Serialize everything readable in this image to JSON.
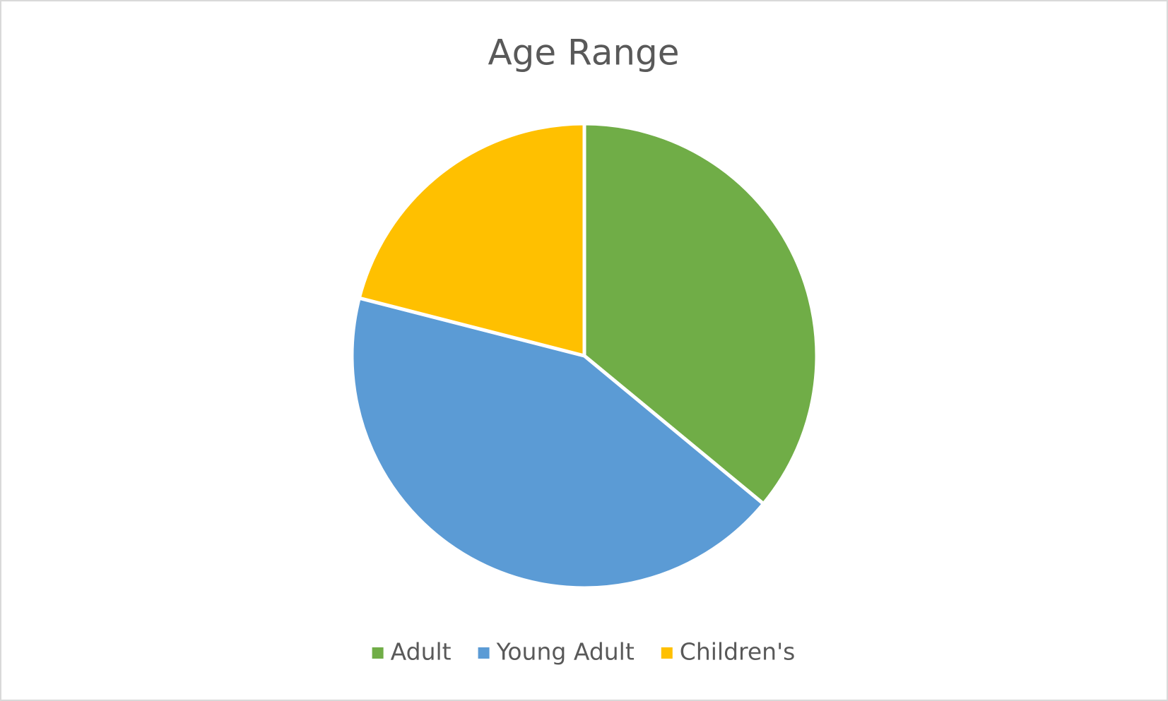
{
  "chart_data": {
    "type": "pie",
    "title": "Age Range",
    "categories": [
      "Adult",
      "Young Adult",
      "Children's"
    ],
    "values": [
      36,
      43,
      21
    ],
    "colors": [
      "#70ad47",
      "#5b9bd5",
      "#ffc000"
    ],
    "legend": "bottom"
  }
}
